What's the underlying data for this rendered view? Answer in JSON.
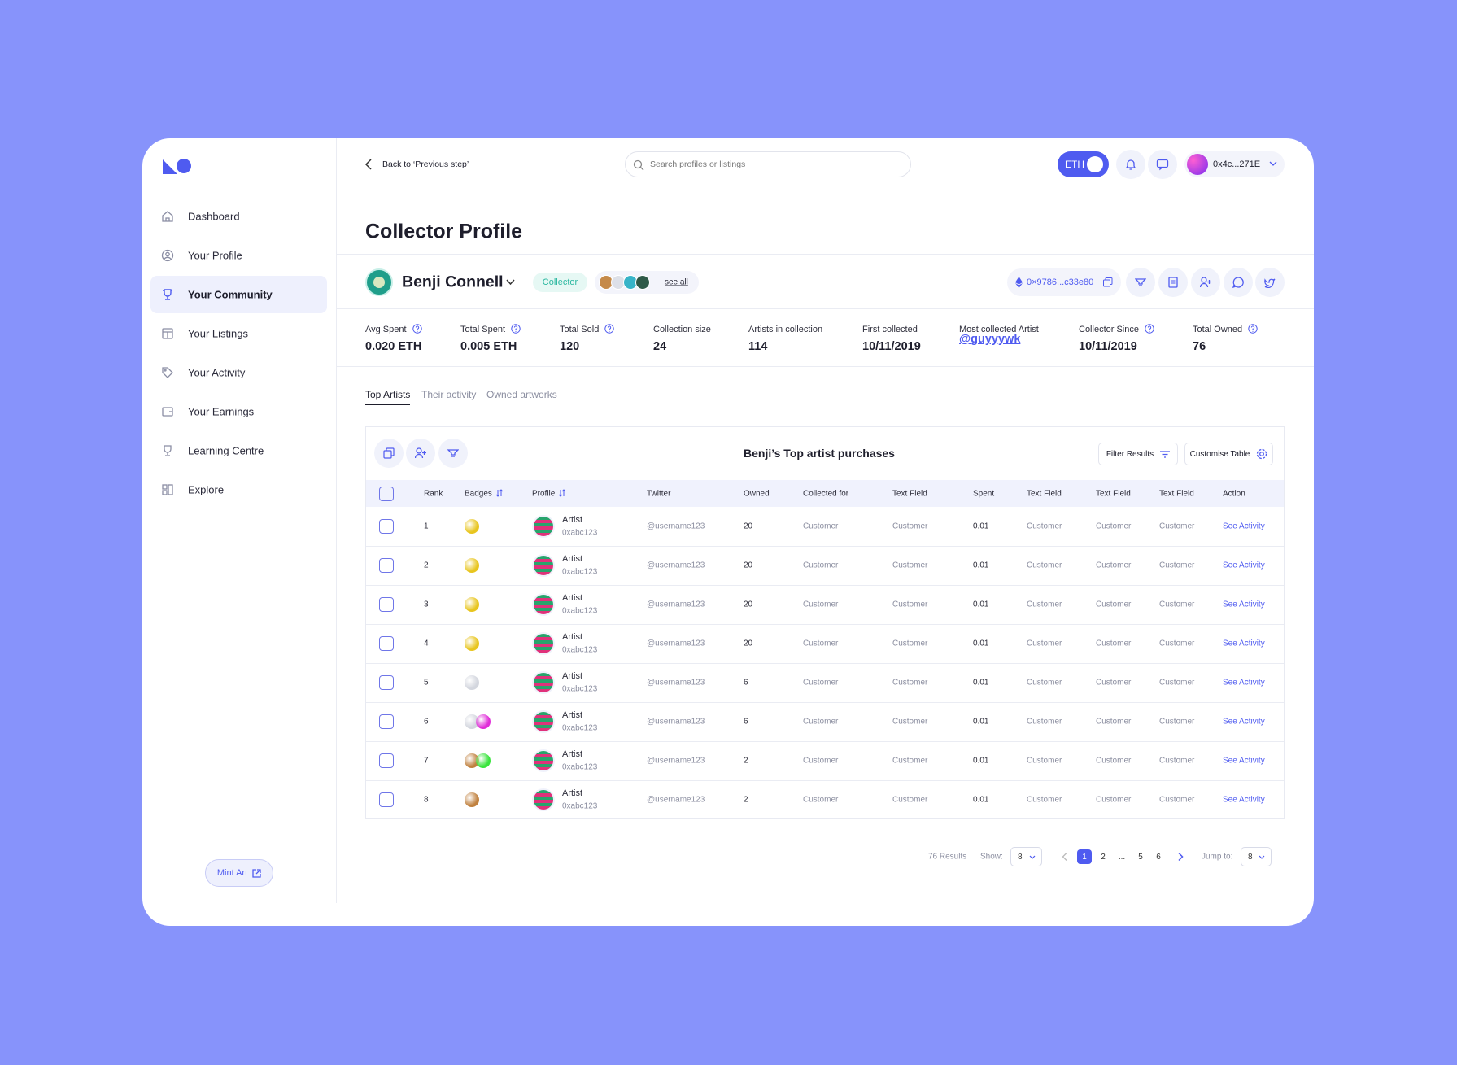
{
  "sidebar": {
    "nav": [
      "Dashboard",
      "Your Profile",
      "Your Community",
      "Your Listings",
      "Your Activity",
      "Your Earnings",
      "Learning Centre",
      "Explore"
    ],
    "active": 2,
    "mint": "Mint Art"
  },
  "topbar": {
    "back": "Back to ‘Previous step’",
    "search_placeholder": "Search profiles or listings",
    "currency": "ETH",
    "wallet": "0x4c...271E"
  },
  "page_title": "Collector Profile",
  "profile": {
    "name": "Benji Connell",
    "role": "Collector",
    "see_all": "see all",
    "address": "0×9786...c33e80"
  },
  "stats": [
    {
      "label": "Avg Spent",
      "value": "0.020 ETH",
      "help": true
    },
    {
      "label": "Total Spent",
      "value": "0.005 ETH",
      "help": true
    },
    {
      "label": "Total Sold",
      "value": "120",
      "help": true
    },
    {
      "label": "Collection size",
      "value": "24",
      "help": false
    },
    {
      "label": "Artists in collection",
      "value": "114",
      "help": false
    },
    {
      "label": "First collected",
      "value": "10/11/2019",
      "help": false
    },
    {
      "label": "Most collected Artist",
      "value": "@guyyywk",
      "help": false
    },
    {
      "label": "Collector Since",
      "value": "10/11/2019",
      "help": true
    },
    {
      "label": "Total Owned",
      "value": "76",
      "help": true
    }
  ],
  "tabs": [
    "Top Artists",
    "Their activity",
    "Owned artworks"
  ],
  "table": {
    "title": "Benji’s Top artist purchases",
    "filter": "Filter Results",
    "customise": "Customise Table",
    "columns": [
      "Rank",
      "Badges",
      "Profile",
      "Twitter",
      "Owned",
      "Collected for",
      "Text Field",
      "Spent",
      "Text Field",
      "Text Field",
      "Text Field",
      "Action"
    ],
    "rows": [
      [
        "1",
        "Artist",
        "0xabc123",
        "@username123",
        "20",
        "Customer",
        "Customer",
        "0.01",
        "Customer",
        "Customer",
        "Customer",
        "See Activity"
      ],
      [
        "2",
        "Artist",
        "0xabc123",
        "@username123",
        "20",
        "Customer",
        "Customer",
        "0.01",
        "Customer",
        "Customer",
        "Customer",
        "See Activity"
      ],
      [
        "3",
        "Artist",
        "0xabc123",
        "@username123",
        "20",
        "Customer",
        "Customer",
        "0.01",
        "Customer",
        "Customer",
        "Customer",
        "See Activity"
      ],
      [
        "4",
        "Artist",
        "0xabc123",
        "@username123",
        "20",
        "Customer",
        "Customer",
        "0.01",
        "Customer",
        "Customer",
        "Customer",
        "See Activity"
      ],
      [
        "5",
        "Artist",
        "0xabc123",
        "@username123",
        "6",
        "Customer",
        "Customer",
        "0.01",
        "Customer",
        "Customer",
        "Customer",
        "See Activity"
      ],
      [
        "6",
        "Artist",
        "0xabc123",
        "@username123",
        "6",
        "Customer",
        "Customer",
        "0.01",
        "Customer",
        "Customer",
        "Customer",
        "See Activity"
      ],
      [
        "7",
        "Artist",
        "0xabc123",
        "@username123",
        "2",
        "Customer",
        "Customer",
        "0.01",
        "Customer",
        "Customer",
        "Customer",
        "See Activity"
      ],
      [
        "8",
        "Artist",
        "0xabc123",
        "@username123",
        "2",
        "Customer",
        "Customer",
        "0.01",
        "Customer",
        "Customer",
        "Customer",
        "See Activity"
      ]
    ]
  },
  "pagination": {
    "results": "76 Results",
    "show_label": "Show:",
    "show": "8",
    "pages": [
      "1",
      "2",
      "...",
      "5",
      "6"
    ],
    "current": 0,
    "jump_label": "Jump to:",
    "jump": "8"
  }
}
